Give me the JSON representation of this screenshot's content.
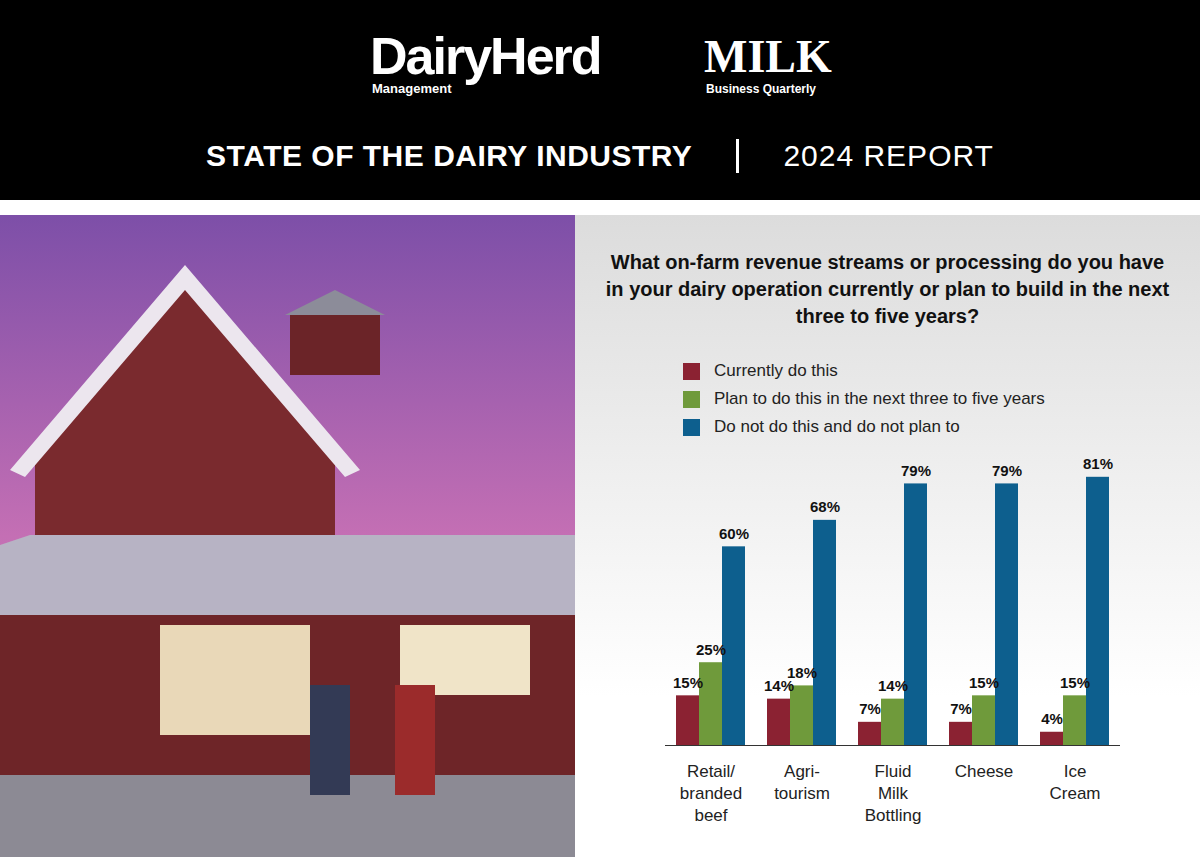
{
  "header": {
    "logo1": "DairyHerd",
    "logo1_sub": "Management",
    "logo2": "MILK",
    "logo2_sub": "Business Quarterly",
    "title": "STATE OF THE DAIRY INDUSTRY",
    "report": "2024 REPORT"
  },
  "chart_data": {
    "type": "bar",
    "title": "What on-farm revenue streams or processing do you have in your dairy operation currently or plan to build in the next three to five years?",
    "categories": [
      "Retail/branded beef",
      "Agri-tourism",
      "Fluid Milk Bottling",
      "Cheese",
      "Ice Cream"
    ],
    "series": [
      {
        "name": "Currently do this",
        "color": "#8b2232",
        "values": [
          15,
          14,
          7,
          7,
          4
        ],
        "value_labels": [
          "15%",
          "14%",
          "7%",
          "7%",
          "4%"
        ]
      },
      {
        "name": "Plan to do this in the next three to five years",
        "color": "#6f9a3b",
        "values": [
          25,
          18,
          14,
          15,
          15
        ],
        "value_labels": [
          "25%",
          "18%",
          "14%",
          "15%",
          "15%"
        ]
      },
      {
        "name": "Do not do this and do not plan to",
        "color": "#0d5f8e",
        "values": [
          60,
          68,
          79,
          79,
          81
        ],
        "value_labels": [
          "60%",
          "68%",
          "79%",
          "79%",
          "81%"
        ]
      }
    ],
    "ylim": [
      0,
      90
    ],
    "yticks": [],
    "grid": false,
    "legend": "top",
    "data_labels": true,
    "tick_labels": "x"
  }
}
